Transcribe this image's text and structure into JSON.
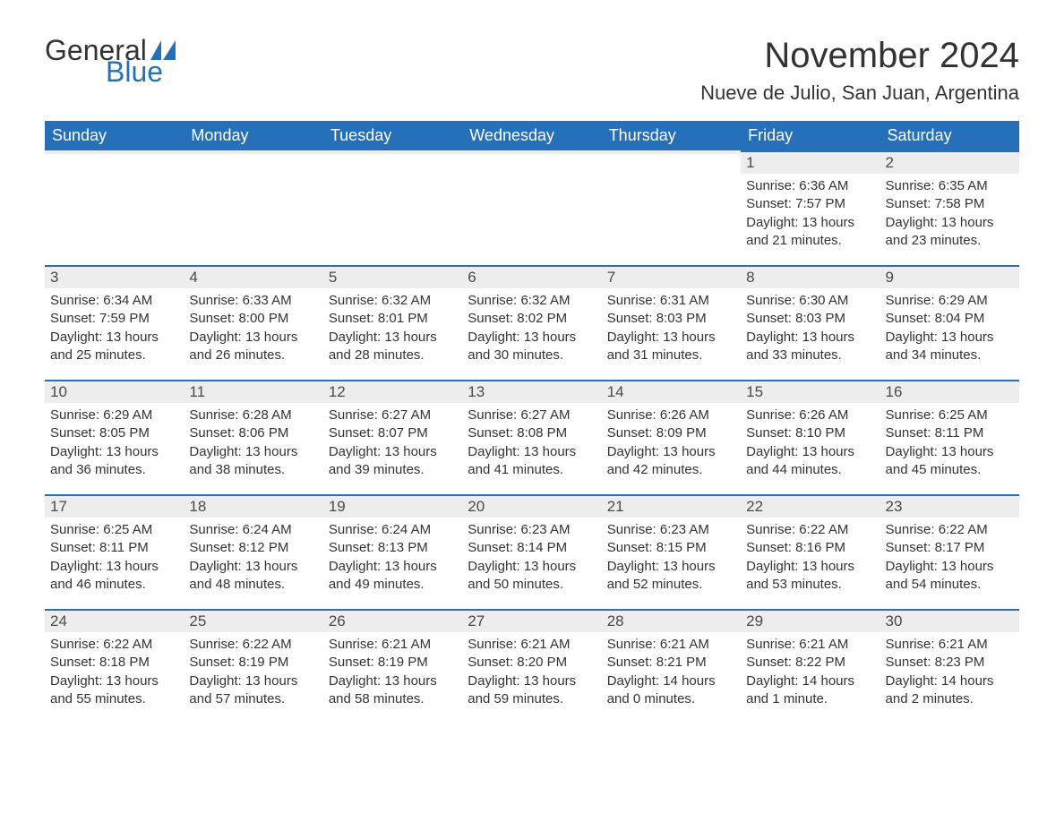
{
  "brand": {
    "text_general": "General",
    "text_blue": "Blue",
    "shape_color": "#2570b8"
  },
  "title": "November 2024",
  "location": "Nueve de Julio, San Juan, Argentina",
  "colors": {
    "header_bg": "#2570b8",
    "header_text": "#ffffff",
    "daynum_bg": "#ededed",
    "daynum_border": "#2570b8",
    "body_text": "#333333",
    "page_bg": "#ffffff"
  },
  "typography": {
    "title_fontsize": 40,
    "location_fontsize": 22,
    "dow_fontsize": 18,
    "daynum_fontsize": 17,
    "body_fontsize": 15,
    "logo_fontsize": 32
  },
  "days_of_week": [
    "Sunday",
    "Monday",
    "Tuesday",
    "Wednesday",
    "Thursday",
    "Friday",
    "Saturday"
  ],
  "weeks": [
    [
      {
        "n": "",
        "sunrise": "",
        "sunset": "",
        "daylight": ""
      },
      {
        "n": "",
        "sunrise": "",
        "sunset": "",
        "daylight": ""
      },
      {
        "n": "",
        "sunrise": "",
        "sunset": "",
        "daylight": ""
      },
      {
        "n": "",
        "sunrise": "",
        "sunset": "",
        "daylight": ""
      },
      {
        "n": "",
        "sunrise": "",
        "sunset": "",
        "daylight": ""
      },
      {
        "n": "1",
        "sunrise": "Sunrise: 6:36 AM",
        "sunset": "Sunset: 7:57 PM",
        "daylight": "Daylight: 13 hours and 21 minutes."
      },
      {
        "n": "2",
        "sunrise": "Sunrise: 6:35 AM",
        "sunset": "Sunset: 7:58 PM",
        "daylight": "Daylight: 13 hours and 23 minutes."
      }
    ],
    [
      {
        "n": "3",
        "sunrise": "Sunrise: 6:34 AM",
        "sunset": "Sunset: 7:59 PM",
        "daylight": "Daylight: 13 hours and 25 minutes."
      },
      {
        "n": "4",
        "sunrise": "Sunrise: 6:33 AM",
        "sunset": "Sunset: 8:00 PM",
        "daylight": "Daylight: 13 hours and 26 minutes."
      },
      {
        "n": "5",
        "sunrise": "Sunrise: 6:32 AM",
        "sunset": "Sunset: 8:01 PM",
        "daylight": "Daylight: 13 hours and 28 minutes."
      },
      {
        "n": "6",
        "sunrise": "Sunrise: 6:32 AM",
        "sunset": "Sunset: 8:02 PM",
        "daylight": "Daylight: 13 hours and 30 minutes."
      },
      {
        "n": "7",
        "sunrise": "Sunrise: 6:31 AM",
        "sunset": "Sunset: 8:03 PM",
        "daylight": "Daylight: 13 hours and 31 minutes."
      },
      {
        "n": "8",
        "sunrise": "Sunrise: 6:30 AM",
        "sunset": "Sunset: 8:03 PM",
        "daylight": "Daylight: 13 hours and 33 minutes."
      },
      {
        "n": "9",
        "sunrise": "Sunrise: 6:29 AM",
        "sunset": "Sunset: 8:04 PM",
        "daylight": "Daylight: 13 hours and 34 minutes."
      }
    ],
    [
      {
        "n": "10",
        "sunrise": "Sunrise: 6:29 AM",
        "sunset": "Sunset: 8:05 PM",
        "daylight": "Daylight: 13 hours and 36 minutes."
      },
      {
        "n": "11",
        "sunrise": "Sunrise: 6:28 AM",
        "sunset": "Sunset: 8:06 PM",
        "daylight": "Daylight: 13 hours and 38 minutes."
      },
      {
        "n": "12",
        "sunrise": "Sunrise: 6:27 AM",
        "sunset": "Sunset: 8:07 PM",
        "daylight": "Daylight: 13 hours and 39 minutes."
      },
      {
        "n": "13",
        "sunrise": "Sunrise: 6:27 AM",
        "sunset": "Sunset: 8:08 PM",
        "daylight": "Daylight: 13 hours and 41 minutes."
      },
      {
        "n": "14",
        "sunrise": "Sunrise: 6:26 AM",
        "sunset": "Sunset: 8:09 PM",
        "daylight": "Daylight: 13 hours and 42 minutes."
      },
      {
        "n": "15",
        "sunrise": "Sunrise: 6:26 AM",
        "sunset": "Sunset: 8:10 PM",
        "daylight": "Daylight: 13 hours and 44 minutes."
      },
      {
        "n": "16",
        "sunrise": "Sunrise: 6:25 AM",
        "sunset": "Sunset: 8:11 PM",
        "daylight": "Daylight: 13 hours and 45 minutes."
      }
    ],
    [
      {
        "n": "17",
        "sunrise": "Sunrise: 6:25 AM",
        "sunset": "Sunset: 8:11 PM",
        "daylight": "Daylight: 13 hours and 46 minutes."
      },
      {
        "n": "18",
        "sunrise": "Sunrise: 6:24 AM",
        "sunset": "Sunset: 8:12 PM",
        "daylight": "Daylight: 13 hours and 48 minutes."
      },
      {
        "n": "19",
        "sunrise": "Sunrise: 6:24 AM",
        "sunset": "Sunset: 8:13 PM",
        "daylight": "Daylight: 13 hours and 49 minutes."
      },
      {
        "n": "20",
        "sunrise": "Sunrise: 6:23 AM",
        "sunset": "Sunset: 8:14 PM",
        "daylight": "Daylight: 13 hours and 50 minutes."
      },
      {
        "n": "21",
        "sunrise": "Sunrise: 6:23 AM",
        "sunset": "Sunset: 8:15 PM",
        "daylight": "Daylight: 13 hours and 52 minutes."
      },
      {
        "n": "22",
        "sunrise": "Sunrise: 6:22 AM",
        "sunset": "Sunset: 8:16 PM",
        "daylight": "Daylight: 13 hours and 53 minutes."
      },
      {
        "n": "23",
        "sunrise": "Sunrise: 6:22 AM",
        "sunset": "Sunset: 8:17 PM",
        "daylight": "Daylight: 13 hours and 54 minutes."
      }
    ],
    [
      {
        "n": "24",
        "sunrise": "Sunrise: 6:22 AM",
        "sunset": "Sunset: 8:18 PM",
        "daylight": "Daylight: 13 hours and 55 minutes."
      },
      {
        "n": "25",
        "sunrise": "Sunrise: 6:22 AM",
        "sunset": "Sunset: 8:19 PM",
        "daylight": "Daylight: 13 hours and 57 minutes."
      },
      {
        "n": "26",
        "sunrise": "Sunrise: 6:21 AM",
        "sunset": "Sunset: 8:19 PM",
        "daylight": "Daylight: 13 hours and 58 minutes."
      },
      {
        "n": "27",
        "sunrise": "Sunrise: 6:21 AM",
        "sunset": "Sunset: 8:20 PM",
        "daylight": "Daylight: 13 hours and 59 minutes."
      },
      {
        "n": "28",
        "sunrise": "Sunrise: 6:21 AM",
        "sunset": "Sunset: 8:21 PM",
        "daylight": "Daylight: 14 hours and 0 minutes."
      },
      {
        "n": "29",
        "sunrise": "Sunrise: 6:21 AM",
        "sunset": "Sunset: 8:22 PM",
        "daylight": "Daylight: 14 hours and 1 minute."
      },
      {
        "n": "30",
        "sunrise": "Sunrise: 6:21 AM",
        "sunset": "Sunset: 8:23 PM",
        "daylight": "Daylight: 14 hours and 2 minutes."
      }
    ]
  ]
}
